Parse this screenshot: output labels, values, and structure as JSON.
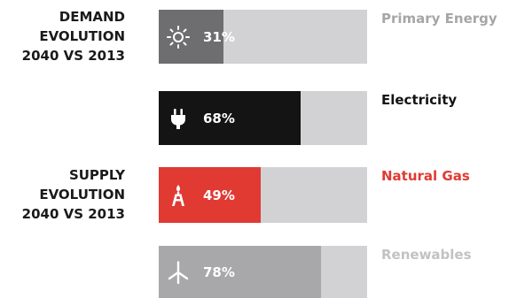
{
  "labels": {
    "demand": "DEMAND\nEVOLUTION\n2040 VS 2013",
    "supply": "SUPPLY\nEVOLUTION\n2040 VS 2013"
  },
  "chart_data": {
    "type": "bar",
    "orientation": "horizontal",
    "xlim": [
      0,
      100
    ],
    "categories": [
      "Primary Energy",
      "Electricity",
      "Natural Gas",
      "Renewables"
    ],
    "values": [
      31,
      68,
      49,
      78
    ],
    "value_labels": [
      "31%",
      "68%",
      "49%",
      "78%"
    ],
    "icons": [
      "sun-icon",
      "plug-icon",
      "gas-flame-icon",
      "wind-turbine-icon"
    ],
    "colors": {
      "fill": [
        "#6e6e70",
        "#141414",
        "#e03a33",
        "#a8a8aa"
      ],
      "label": [
        "#a6a6a6",
        "#141414",
        "#e03a33",
        "#c2c2c2"
      ],
      "track": "#d2d2d4"
    }
  }
}
